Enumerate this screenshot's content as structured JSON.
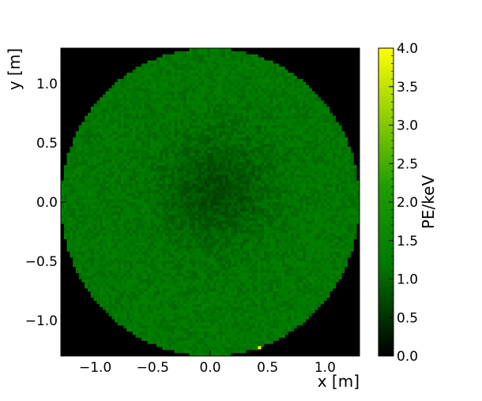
{
  "chart_data": {
    "type": "heatmap",
    "title": "",
    "xlabel": "x [m]",
    "ylabel": "y [m]",
    "xlim": [
      -1.3,
      1.3
    ],
    "ylim": [
      -1.3,
      1.3
    ],
    "xticks": [
      {
        "value": -1.0,
        "label": "−1.0"
      },
      {
        "value": -0.5,
        "label": "−0.5"
      },
      {
        "value": 0.0,
        "label": "0.0"
      },
      {
        "value": 0.5,
        "label": "0.5"
      },
      {
        "value": 1.0,
        "label": "1.0"
      }
    ],
    "yticks": [
      {
        "value": -1.0,
        "label": "−1.0"
      },
      {
        "value": -0.5,
        "label": "−0.5"
      },
      {
        "value": 0.0,
        "label": "0.0"
      },
      {
        "value": 0.5,
        "label": "0.5"
      },
      {
        "value": 1.0,
        "label": "1.0"
      }
    ],
    "grid": false,
    "colorbar": {
      "label": "PE/keV",
      "range": [
        0.0,
        4.0
      ],
      "ticks": [
        {
          "value": 0.0,
          "label": "0.0"
        },
        {
          "value": 0.5,
          "label": "0.5"
        },
        {
          "value": 1.0,
          "label": "1.0"
        },
        {
          "value": 1.5,
          "label": "1.5"
        },
        {
          "value": 2.0,
          "label": "2.0"
        },
        {
          "value": 2.5,
          "label": "2.5"
        },
        {
          "value": 3.0,
          "label": "3.0"
        },
        {
          "value": 3.5,
          "label": "3.5"
        },
        {
          "value": 4.0,
          "label": "4.0"
        }
      ],
      "colormap": [
        "#000000",
        "#007a00",
        "#1f9d00",
        "#ffff00"
      ]
    },
    "detector_radius": 1.3,
    "background_color": "#000000",
    "typical_value": 1.2,
    "central_depression": {
      "center": [
        0.05,
        0.1
      ],
      "radius": 0.55,
      "min_value": 0.75
    },
    "hot_pixels": [
      {
        "x": 0.43,
        "y": -1.23,
        "value": 4.0
      }
    ]
  }
}
